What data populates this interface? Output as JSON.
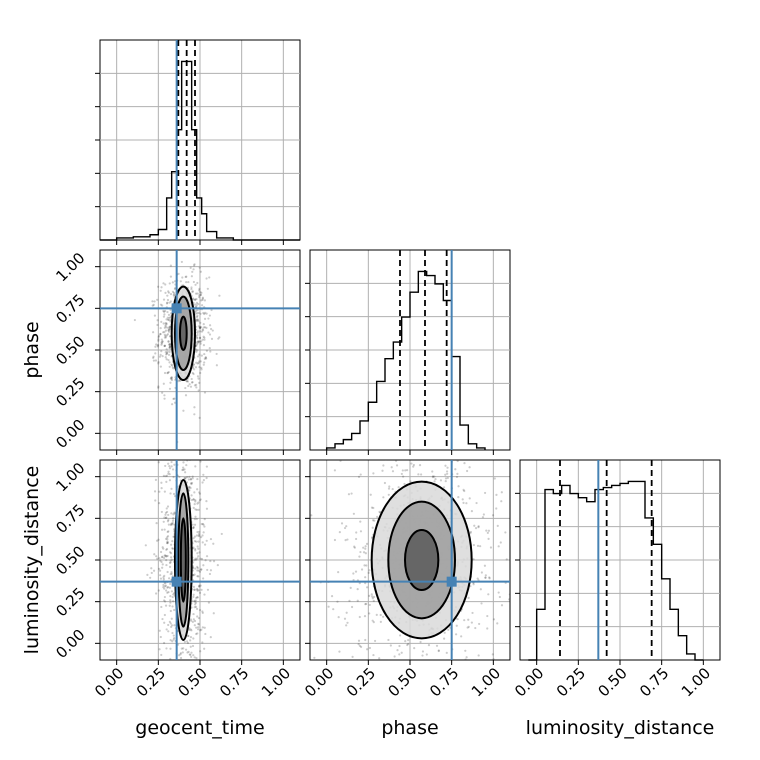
{
  "chart_data": {
    "type": "corner",
    "parameters": [
      "geocent_time",
      "phase",
      "luminosity_distance"
    ],
    "axis_range": [
      -0.1,
      1.1
    ],
    "ticks": [
      0.0,
      0.25,
      0.5,
      0.75,
      1.0
    ],
    "tick_labels": [
      "0.00",
      "0.25",
      "0.50",
      "0.75",
      "1.00"
    ],
    "grid": true,
    "colors": {
      "truth": "#4682b4",
      "histogram": "#000000",
      "quantile": "#000000",
      "sample": "#333333"
    },
    "truths": {
      "geocent_time": 0.36,
      "phase": 0.75,
      "luminosity_distance": 0.37
    },
    "quantiles": {
      "geocent_time": [
        0.37,
        0.42,
        0.47
      ],
      "phase": [
        0.44,
        0.59,
        0.72
      ],
      "luminosity_distance": [
        0.14,
        0.42,
        0.69
      ]
    },
    "histograms": {
      "geocent_time": {
        "edges": [
          -0.1,
          0.0,
          0.1,
          0.2,
          0.25,
          0.3,
          0.33,
          0.36,
          0.39,
          0.42,
          0.45,
          0.48,
          0.51,
          0.54,
          0.6,
          0.7,
          1.1
        ],
        "counts": [
          0,
          2,
          3,
          5,
          10,
          40,
          65,
          105,
          170,
          170,
          105,
          40,
          25,
          8,
          2,
          0
        ]
      },
      "phase": {
        "edges": [
          0.0,
          0.05,
          0.1,
          0.15,
          0.2,
          0.25,
          0.3,
          0.35,
          0.4,
          0.45,
          0.5,
          0.55,
          0.6,
          0.65,
          0.7,
          0.75,
          0.8,
          0.85,
          0.9,
          0.95
        ],
        "counts": [
          1,
          3,
          5,
          8,
          14,
          23,
          33,
          44,
          52,
          64,
          76,
          86,
          84,
          80,
          72,
          45,
          12,
          3,
          1
        ]
      },
      "luminosity_distance": {
        "edges": [
          -0.05,
          0.0,
          0.05,
          0.1,
          0.15,
          0.2,
          0.25,
          0.3,
          0.35,
          0.4,
          0.45,
          0.5,
          0.55,
          0.6,
          0.65,
          0.7,
          0.75,
          0.8,
          0.85,
          0.9,
          0.95,
          1.0
        ],
        "counts": [
          0,
          25,
          84,
          82,
          86,
          82,
          80,
          78,
          84,
          85,
          86,
          87,
          88,
          88,
          70,
          57,
          40,
          25,
          12,
          3,
          0
        ]
      }
    },
    "panels_2d": [
      {
        "x": "geocent_time",
        "y": "phase",
        "center": [
          0.4,
          0.6
        ],
        "spread": [
          0.045,
          0.13
        ],
        "contours": [
          [
            0.02,
            0.1
          ],
          [
            0.05,
            0.22
          ],
          [
            0.07,
            0.28
          ]
        ]
      },
      {
        "x": "geocent_time",
        "y": "luminosity_distance",
        "center": [
          0.4,
          0.5
        ],
        "spread": [
          0.045,
          0.28
        ],
        "contours": [
          [
            0.015,
            0.25
          ],
          [
            0.03,
            0.4
          ],
          [
            0.05,
            0.48
          ]
        ]
      },
      {
        "x": "phase",
        "y": "luminosity_distance",
        "center": [
          0.57,
          0.5
        ],
        "spread": [
          0.15,
          0.26
        ],
        "contours": [
          [
            0.1,
            0.18
          ],
          [
            0.2,
            0.35
          ],
          [
            0.3,
            0.47
          ]
        ]
      }
    ]
  }
}
